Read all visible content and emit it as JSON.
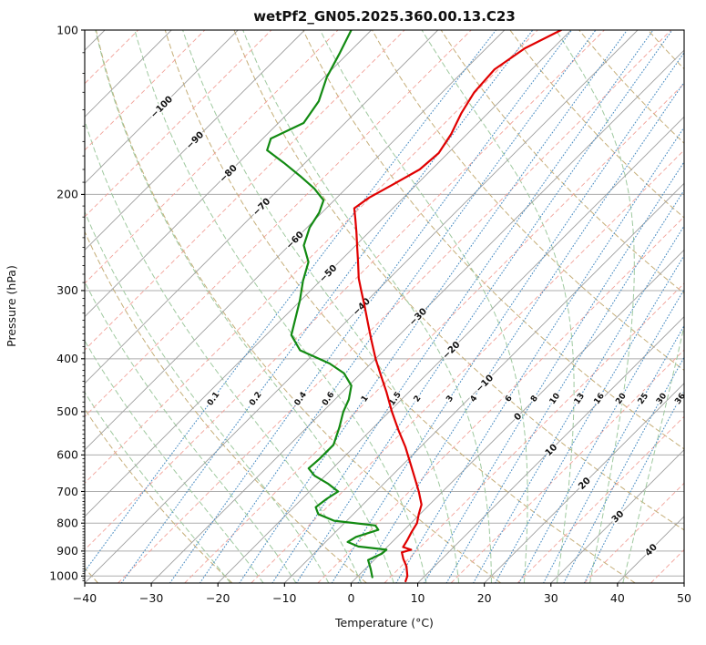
{
  "title": "wetPf2_GN05.2025.360.00.13.C23",
  "chart_data": {
    "type": "line",
    "subtype": "skew-t-log-p-sounding",
    "title": "wetPf2_GN05.2025.360.00.13.C23",
    "xlabel": "Temperature (°C)",
    "ylabel": "Pressure (hPa)",
    "x_range": [
      -40,
      50
    ],
    "pressure_range": [
      100,
      1030
    ],
    "x_ticks": [
      -40,
      -30,
      -20,
      -10,
      0,
      10,
      20,
      30,
      40,
      50
    ],
    "y_ticks": [
      100,
      200,
      300,
      400,
      500,
      600,
      700,
      800,
      900,
      1000
    ],
    "grid": true,
    "skew_deg": 45,
    "isotherm_step": 10,
    "isotherm_labels": [
      -100,
      -90,
      -80,
      -70,
      -60,
      -50,
      -40,
      -30,
      -20,
      -10,
      0,
      10,
      20,
      30,
      40
    ],
    "dry_adiabat_thetas": [
      -60,
      -40,
      -20,
      0,
      20,
      40,
      60,
      80,
      100,
      120,
      140,
      160,
      180
    ],
    "moist_adiabat_thetaws": [
      -20,
      -15,
      -10,
      -5,
      0,
      5,
      10,
      15,
      20,
      25,
      30,
      35,
      40
    ],
    "mixing_ratios": [
      0.1,
      0.2,
      0.4,
      0.6,
      1,
      1.5,
      2,
      3,
      4,
      6,
      8,
      10,
      13,
      16,
      20,
      25,
      30,
      36
    ],
    "mixing_label_pressure": 473,
    "series": [
      {
        "name": "temperature",
        "color": "#e00000",
        "points": [
          [
            100,
            -51.5
          ],
          [
            108,
            -54.2
          ],
          [
            118,
            -55.6
          ],
          [
            130,
            -55.2
          ],
          [
            142,
            -54.0
          ],
          [
            155,
            -52.4
          ],
          [
            168,
            -51.4
          ],
          [
            180,
            -51.8
          ],
          [
            192,
            -53.6
          ],
          [
            203,
            -55.2
          ],
          [
            212,
            -55.8
          ],
          [
            222,
            -54.0
          ],
          [
            235,
            -51.8
          ],
          [
            250,
            -49.5
          ],
          [
            265,
            -47.3
          ],
          [
            285,
            -44.6
          ],
          [
            300,
            -42.4
          ],
          [
            320,
            -39.6
          ],
          [
            345,
            -36.4
          ],
          [
            370,
            -33.4
          ],
          [
            400,
            -30.0
          ],
          [
            430,
            -26.6
          ],
          [
            460,
            -23.4
          ],
          [
            500,
            -19.6
          ],
          [
            540,
            -15.9
          ],
          [
            580,
            -12.3
          ],
          [
            620,
            -9.2
          ],
          [
            660,
            -6.3
          ],
          [
            700,
            -3.6
          ],
          [
            740,
            -1.2
          ],
          [
            770,
            -0.2
          ],
          [
            800,
            0.9
          ],
          [
            830,
            1.4
          ],
          [
            860,
            2.0
          ],
          [
            885,
            2.4
          ],
          [
            895,
            4.0
          ],
          [
            905,
            3.0
          ],
          [
            930,
            4.2
          ],
          [
            960,
            5.8
          ],
          [
            1000,
            7.4
          ],
          [
            1022,
            7.9
          ]
        ]
      },
      {
        "name": "dewpoint",
        "color": "#128a12",
        "points": [
          [
            100,
            -83.0
          ],
          [
            110,
            -81.3
          ],
          [
            122,
            -79.6
          ],
          [
            135,
            -77.2
          ],
          [
            148,
            -76.2
          ],
          [
            158,
            -78.8
          ],
          [
            166,
            -77.6
          ],
          [
            175,
            -73.2
          ],
          [
            185,
            -68.8
          ],
          [
            195,
            -64.8
          ],
          [
            205,
            -61.6
          ],
          [
            216,
            -60.4
          ],
          [
            230,
            -59.6
          ],
          [
            248,
            -57.8
          ],
          [
            266,
            -54.6
          ],
          [
            288,
            -52.6
          ],
          [
            312,
            -50.2
          ],
          [
            336,
            -48.2
          ],
          [
            362,
            -46.2
          ],
          [
            386,
            -42.6
          ],
          [
            408,
            -36.2
          ],
          [
            425,
            -32.6
          ],
          [
            448,
            -29.6
          ],
          [
            475,
            -27.9
          ],
          [
            500,
            -26.9
          ],
          [
            535,
            -25.1
          ],
          [
            575,
            -23.4
          ],
          [
            610,
            -23.4
          ],
          [
            635,
            -23.6
          ],
          [
            655,
            -21.6
          ],
          [
            678,
            -18.3
          ],
          [
            700,
            -15.7
          ],
          [
            722,
            -16.3
          ],
          [
            748,
            -16.7
          ],
          [
            770,
            -15.3
          ],
          [
            792,
            -11.9
          ],
          [
            808,
            -5.0
          ],
          [
            823,
            -3.9
          ],
          [
            848,
            -6.2
          ],
          [
            866,
            -6.7
          ],
          [
            883,
            -4.4
          ],
          [
            895,
            0.3
          ],
          [
            910,
            0.2
          ],
          [
            935,
            -0.9
          ],
          [
            970,
            0.8
          ],
          [
            1005,
            2.3
          ]
        ]
      }
    ],
    "colors": {
      "grid": "#adadad",
      "isotherm": "#9e9e9e",
      "isotherm_minor": "#f2a29a",
      "dry_adiabat": "#c5ae78",
      "moist_adiabat": "#9fc99f",
      "mixing_ratio": "#4d8fc4",
      "label_negative": "#2f7bbf",
      "label_zero": "#808080",
      "label_positive": "#c65353",
      "mixing_label": "#2f7bbf"
    },
    "legend": "none"
  }
}
